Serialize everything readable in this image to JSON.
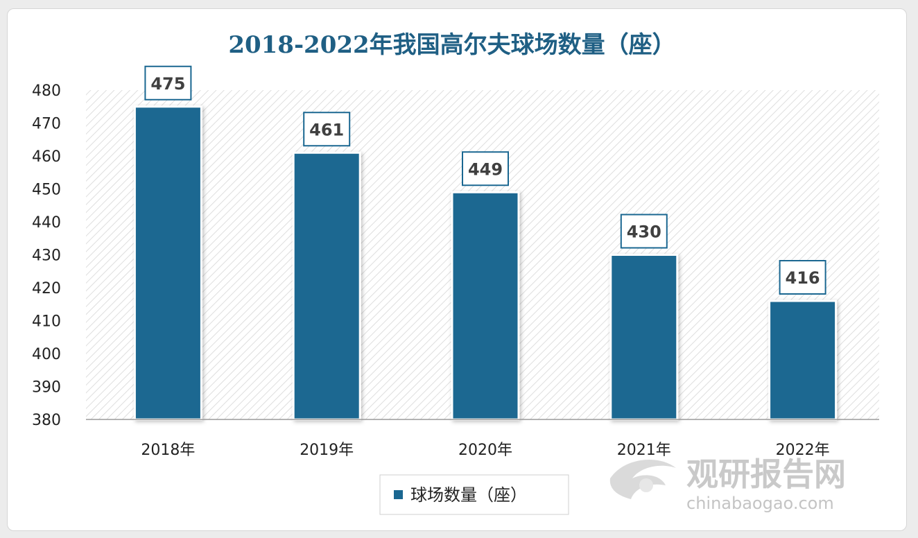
{
  "chart_data": {
    "type": "bar",
    "title": "2018-2022年我国高尔夫球场数量（座）",
    "categories": [
      "2018年",
      "2019年",
      "2020年",
      "2021年",
      "2022年"
    ],
    "series": [
      {
        "name": "球场数量（座）",
        "values": [
          475,
          461,
          449,
          430,
          416
        ]
      }
    ],
    "ylim": [
      380,
      480
    ],
    "yticks": [
      380,
      390,
      400,
      410,
      420,
      430,
      440,
      450,
      460,
      470,
      480
    ],
    "xlabel": "",
    "ylabel": "",
    "legend_position": "bottom",
    "grid": false,
    "colors": {
      "bar": "#1a6791",
      "title": "#1f5f84",
      "label_border": "#1a6791"
    }
  },
  "watermark": {
    "brand": "观研报告网",
    "url": "chinabaogao.com",
    "icon": "swirl-logo-icon"
  }
}
